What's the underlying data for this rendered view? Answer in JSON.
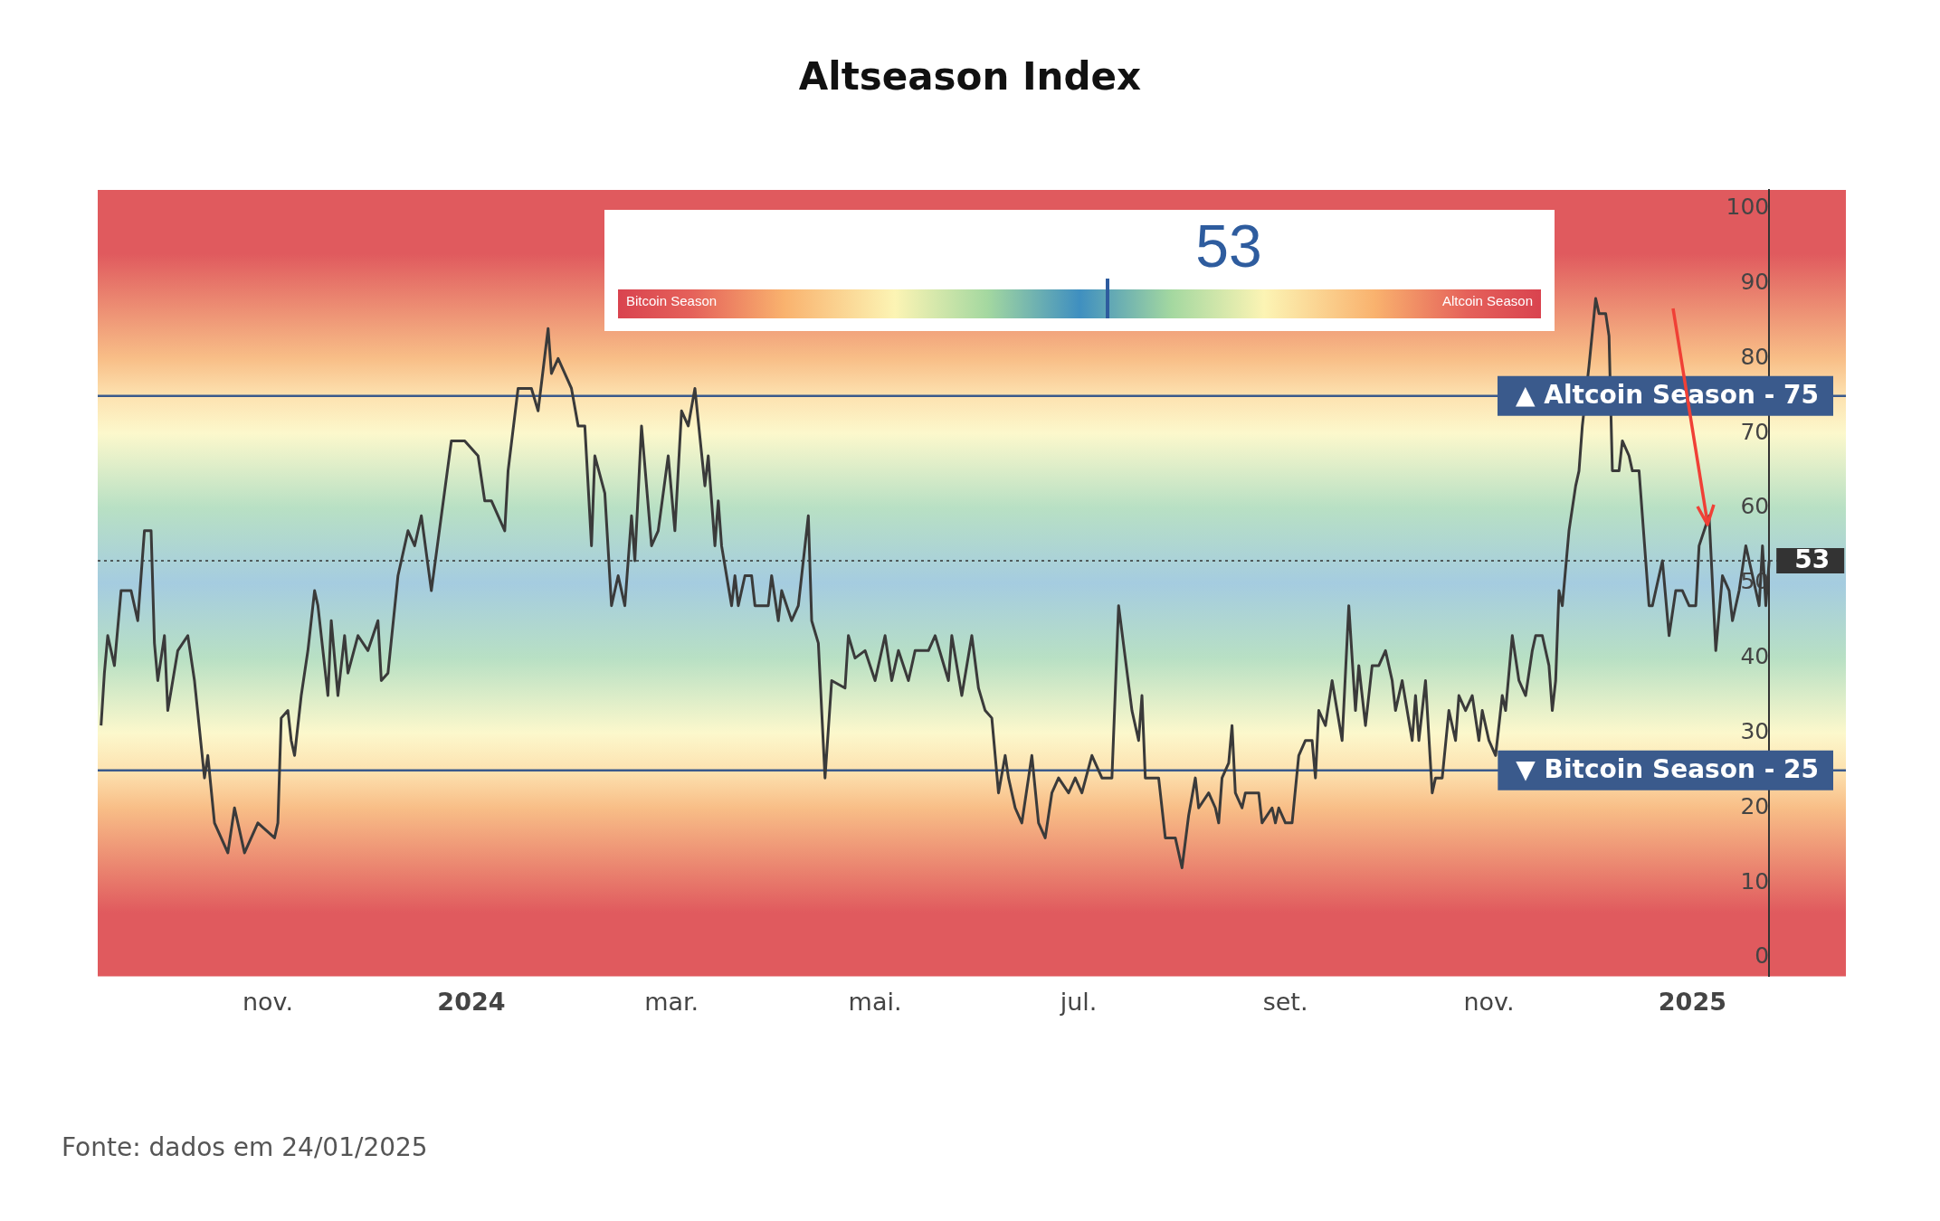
{
  "chart_data": {
    "type": "line",
    "title": "Altseason Index",
    "annotations": [
      "53",
      "Bitcoin Season",
      "Altcoin Season",
      "Fonte: dados em 24/01/2025"
    ],
    "xlim": [
      "2023-09-11",
      "2025-02-16"
    ],
    "xticks": [
      {
        "value": "2023-11-01",
        "label": "nov."
      },
      {
        "value": "2024-01-01",
        "label": "2024"
      },
      {
        "value": "2024-03-01",
        "label": "mar."
      },
      {
        "value": "2024-05-01",
        "label": "mai."
      },
      {
        "value": "2024-07-01",
        "label": "jul."
      },
      {
        "value": "2024-09-01",
        "label": "set."
      },
      {
        "value": "2024-11-01",
        "label": "nov."
      },
      {
        "value": "2025-01-01",
        "label": "2025"
      }
    ],
    "ylim": [
      -2.5,
      102.5
    ],
    "yticks": [
      0,
      10,
      20,
      30,
      40,
      50,
      60,
      70,
      80,
      90,
      100
    ],
    "grid": false,
    "legend": false,
    "marker": "none",
    "line_style": "solid",
    "ref_lines": [
      {
        "axis": "y",
        "value": 75,
        "label": "▲ Altcoin Season - 75",
        "color": "#3a5a8c",
        "line_style": "solid"
      },
      {
        "axis": "y",
        "value": 25,
        "label": "▼ Bitcoin Season - 25",
        "color": "#3a5a8c",
        "line_style": "solid"
      },
      {
        "axis": "y",
        "value": 53,
        "label": "53",
        "color": "#333333",
        "line_style": "dotted"
      }
    ],
    "series": [
      {
        "color": "#3a3a3a",
        "x": [
          "2023-09-12",
          "2023-09-13",
          "2023-09-14",
          "2023-09-16",
          "2023-09-18",
          "2023-09-21",
          "2023-09-23",
          "2023-09-25",
          "2023-09-27",
          "2023-09-28",
          "2023-09-29",
          "2023-10-01",
          "2023-10-02",
          "2023-10-05",
          "2023-10-08",
          "2023-10-10",
          "2023-10-13",
          "2023-10-14",
          "2023-10-16",
          "2023-10-20",
          "2023-10-22",
          "2023-10-25",
          "2023-10-29",
          "2023-11-03",
          "2023-11-04",
          "2023-11-05",
          "2023-11-07",
          "2023-11-08",
          "2023-11-09",
          "2023-11-11",
          "2023-11-13",
          "2023-11-15",
          "2023-11-16",
          "2023-11-19",
          "2023-11-20",
          "2023-11-22",
          "2023-11-24",
          "2023-11-25",
          "2023-11-28",
          "2023-12-01",
          "2023-12-04",
          "2023-12-05",
          "2023-12-07",
          "2023-12-10",
          "2023-12-13",
          "2023-12-15",
          "2023-12-17",
          "2023-12-20",
          "2023-12-23",
          "2023-12-26",
          "2023-12-30",
          "2024-01-03",
          "2024-01-05",
          "2024-01-07",
          "2024-01-11",
          "2024-01-12",
          "2024-01-15",
          "2024-01-19",
          "2024-01-21",
          "2024-01-24",
          "2024-01-25",
          "2024-01-27",
          "2024-01-31",
          "2024-02-02",
          "2024-02-04",
          "2024-02-06",
          "2024-02-07",
          "2024-02-10",
          "2024-02-12",
          "2024-02-14",
          "2024-02-16",
          "2024-02-18",
          "2024-02-19",
          "2024-02-21",
          "2024-02-24",
          "2024-02-26",
          "2024-02-29",
          "2024-03-02",
          "2024-03-04",
          "2024-03-06",
          "2024-03-08",
          "2024-03-11",
          "2024-03-12",
          "2024-03-14",
          "2024-03-15",
          "2024-03-16",
          "2024-03-19",
          "2024-03-20",
          "2024-03-21",
          "2024-03-23",
          "2024-03-25",
          "2024-03-26",
          "2024-03-30",
          "2024-03-31",
          "2024-04-02",
          "2024-04-03",
          "2024-04-06",
          "2024-04-08",
          "2024-04-11",
          "2024-04-12",
          "2024-04-14",
          "2024-04-16",
          "2024-04-18",
          "2024-04-22",
          "2024-04-23",
          "2024-04-25",
          "2024-04-28",
          "2024-05-01",
          "2024-05-04",
          "2024-05-06",
          "2024-05-08",
          "2024-05-11",
          "2024-05-13",
          "2024-05-17",
          "2024-05-19",
          "2024-05-23",
          "2024-05-24",
          "2024-05-27",
          "2024-05-30",
          "2024-06-01",
          "2024-06-03",
          "2024-06-05",
          "2024-06-07",
          "2024-06-09",
          "2024-06-10",
          "2024-06-12",
          "2024-06-14",
          "2024-06-17",
          "2024-06-19",
          "2024-06-21",
          "2024-06-23",
          "2024-06-25",
          "2024-06-28",
          "2024-06-30",
          "2024-07-02",
          "2024-07-05",
          "2024-07-08",
          "2024-07-11",
          "2024-07-13",
          "2024-07-15",
          "2024-07-17",
          "2024-07-19",
          "2024-07-20",
          "2024-07-21",
          "2024-07-25",
          "2024-07-27",
          "2024-07-30",
          "2024-08-01",
          "2024-08-03",
          "2024-08-05",
          "2024-08-06",
          "2024-08-09",
          "2024-08-11",
          "2024-08-12",
          "2024-08-13",
          "2024-08-15",
          "2024-08-16",
          "2024-08-17",
          "2024-08-19",
          "2024-08-20",
          "2024-08-24",
          "2024-08-25",
          "2024-08-28",
          "2024-08-29",
          "2024-08-30",
          "2024-09-01",
          "2024-09-03",
          "2024-09-05",
          "2024-09-07",
          "2024-09-09",
          "2024-09-10",
          "2024-09-11",
          "2024-09-13",
          "2024-09-15",
          "2024-09-18",
          "2024-09-20",
          "2024-09-22",
          "2024-09-23",
          "2024-09-25",
          "2024-09-27",
          "2024-09-29",
          "2024-10-01",
          "2024-10-03",
          "2024-10-04",
          "2024-10-06",
          "2024-10-09",
          "2024-10-10",
          "2024-10-11",
          "2024-10-13",
          "2024-10-15",
          "2024-10-16",
          "2024-10-18",
          "2024-10-20",
          "2024-10-22",
          "2024-10-23",
          "2024-10-25",
          "2024-10-27",
          "2024-10-29",
          "2024-10-30",
          "2024-11-01",
          "2024-11-03",
          "2024-11-05",
          "2024-11-06",
          "2024-11-08",
          "2024-11-10",
          "2024-11-12",
          "2024-11-14",
          "2024-11-15",
          "2024-11-17",
          "2024-11-19",
          "2024-11-20",
          "2024-11-21",
          "2024-11-22",
          "2024-11-23",
          "2024-11-25",
          "2024-11-27",
          "2024-11-28",
          "2024-11-29",
          "2024-12-01",
          "2024-12-03",
          "2024-12-04",
          "2024-12-06",
          "2024-12-07",
          "2024-12-08",
          "2024-12-10",
          "2024-12-11",
          "2024-12-13",
          "2024-12-14",
          "2024-12-16",
          "2024-12-19",
          "2024-12-20",
          "2024-12-23",
          "2024-12-25",
          "2024-12-27",
          "2024-12-29",
          "2024-12-31",
          "2025-01-02",
          "2025-01-03",
          "2025-01-06",
          "2025-01-08",
          "2025-01-10",
          "2025-01-12",
          "2025-01-13",
          "2025-01-15",
          "2025-01-17",
          "2025-01-19",
          "2025-01-21",
          "2025-01-22",
          "2025-01-23",
          "2025-01-24"
        ],
        "values": [
          31,
          38,
          43,
          39,
          49,
          49,
          45,
          57,
          57,
          42,
          37,
          43,
          33,
          41,
          43,
          37,
          24,
          27,
          18,
          14,
          20,
          14,
          18,
          16,
          18,
          32,
          33,
          29,
          27,
          35,
          41,
          49,
          47,
          35,
          45,
          35,
          43,
          38,
          43,
          41,
          45,
          37,
          38,
          51,
          57,
          55,
          59,
          49,
          59,
          69,
          69,
          67,
          61,
          61,
          57,
          65,
          76,
          76,
          73,
          84,
          78,
          80,
          76,
          71,
          71,
          55,
          67,
          62,
          47,
          51,
          47,
          59,
          53,
          71,
          55,
          57,
          67,
          57,
          73,
          71,
          76,
          63,
          67,
          55,
          61,
          55,
          47,
          51,
          47,
          51,
          51,
          47,
          47,
          51,
          45,
          49,
          45,
          47,
          59,
          45,
          42,
          24,
          37,
          36,
          43,
          40,
          41,
          37,
          43,
          37,
          41,
          37,
          41,
          41,
          43,
          37,
          43,
          35,
          43,
          36,
          33,
          32,
          22,
          27,
          24,
          20,
          18,
          27,
          18,
          16,
          22,
          24,
          22,
          24,
          22,
          27,
          24,
          24,
          47,
          40,
          33,
          29,
          35,
          24,
          24,
          16,
          16,
          12,
          19,
          24,
          20,
          22,
          20,
          18,
          24,
          26,
          31,
          22,
          20,
          22,
          22,
          18,
          20,
          18,
          20,
          18,
          18,
          27,
          29,
          29,
          24,
          33,
          31,
          37,
          29,
          47,
          33,
          39,
          31,
          39,
          39,
          41,
          37,
          33,
          37,
          29,
          35,
          29,
          37,
          22,
          24,
          24,
          33,
          29,
          35,
          33,
          35,
          29,
          33,
          29,
          27,
          35,
          33,
          43,
          37,
          35,
          41,
          43,
          43,
          39,
          33,
          37,
          49,
          47,
          57,
          63,
          65,
          71,
          79,
          88,
          86,
          86,
          83,
          65,
          65,
          69,
          67,
          65,
          65,
          47,
          47,
          53,
          43,
          49,
          49,
          47,
          47,
          55,
          59,
          41,
          51,
          49,
          45,
          49,
          55,
          51,
          47,
          55,
          47,
          53
        ]
      }
    ]
  }
}
